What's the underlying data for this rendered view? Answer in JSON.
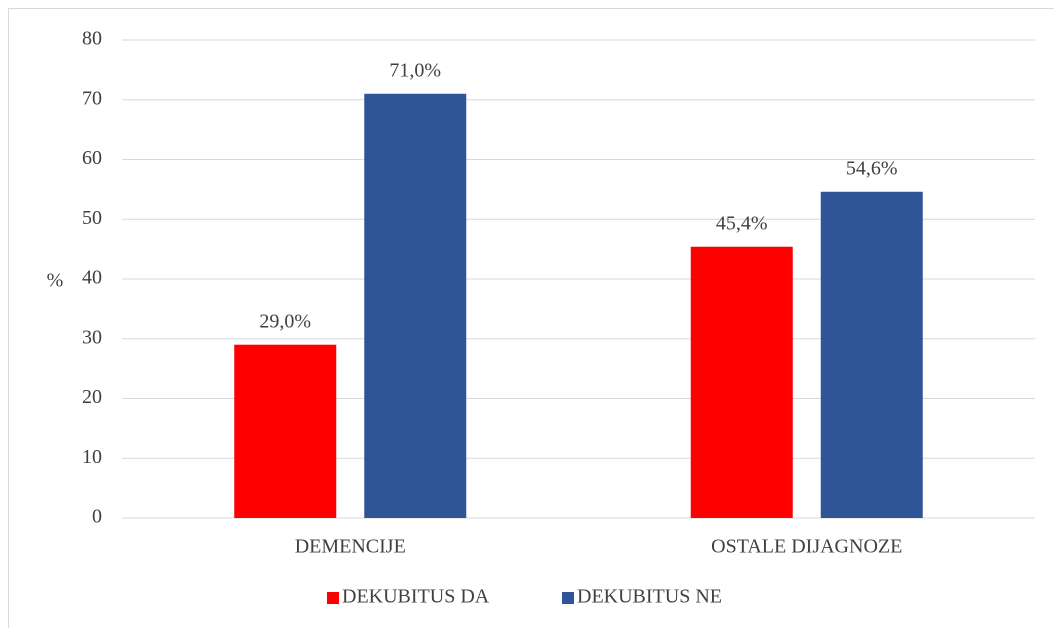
{
  "chart_data": {
    "type": "bar",
    "y_label": "%",
    "categories": [
      "DEMENCIJE",
      "OSTALE DIJAGNOZE"
    ],
    "series": [
      {
        "name": "DEKUBITUS DA",
        "color": "#ff0000",
        "values": [
          29.0,
          45.4
        ],
        "value_labels": [
          "29,0%",
          "45,4%"
        ]
      },
      {
        "name": "DEKUBITUS NE",
        "color": "#2f5597",
        "values": [
          71.0,
          54.6
        ],
        "value_labels": [
          "71,0%",
          "54,6%"
        ]
      }
    ],
    "ylim": [
      0,
      80
    ],
    "yticks": [
      0,
      10,
      20,
      30,
      40,
      50,
      60,
      70,
      80
    ],
    "grid": true,
    "legend": "bottom"
  }
}
